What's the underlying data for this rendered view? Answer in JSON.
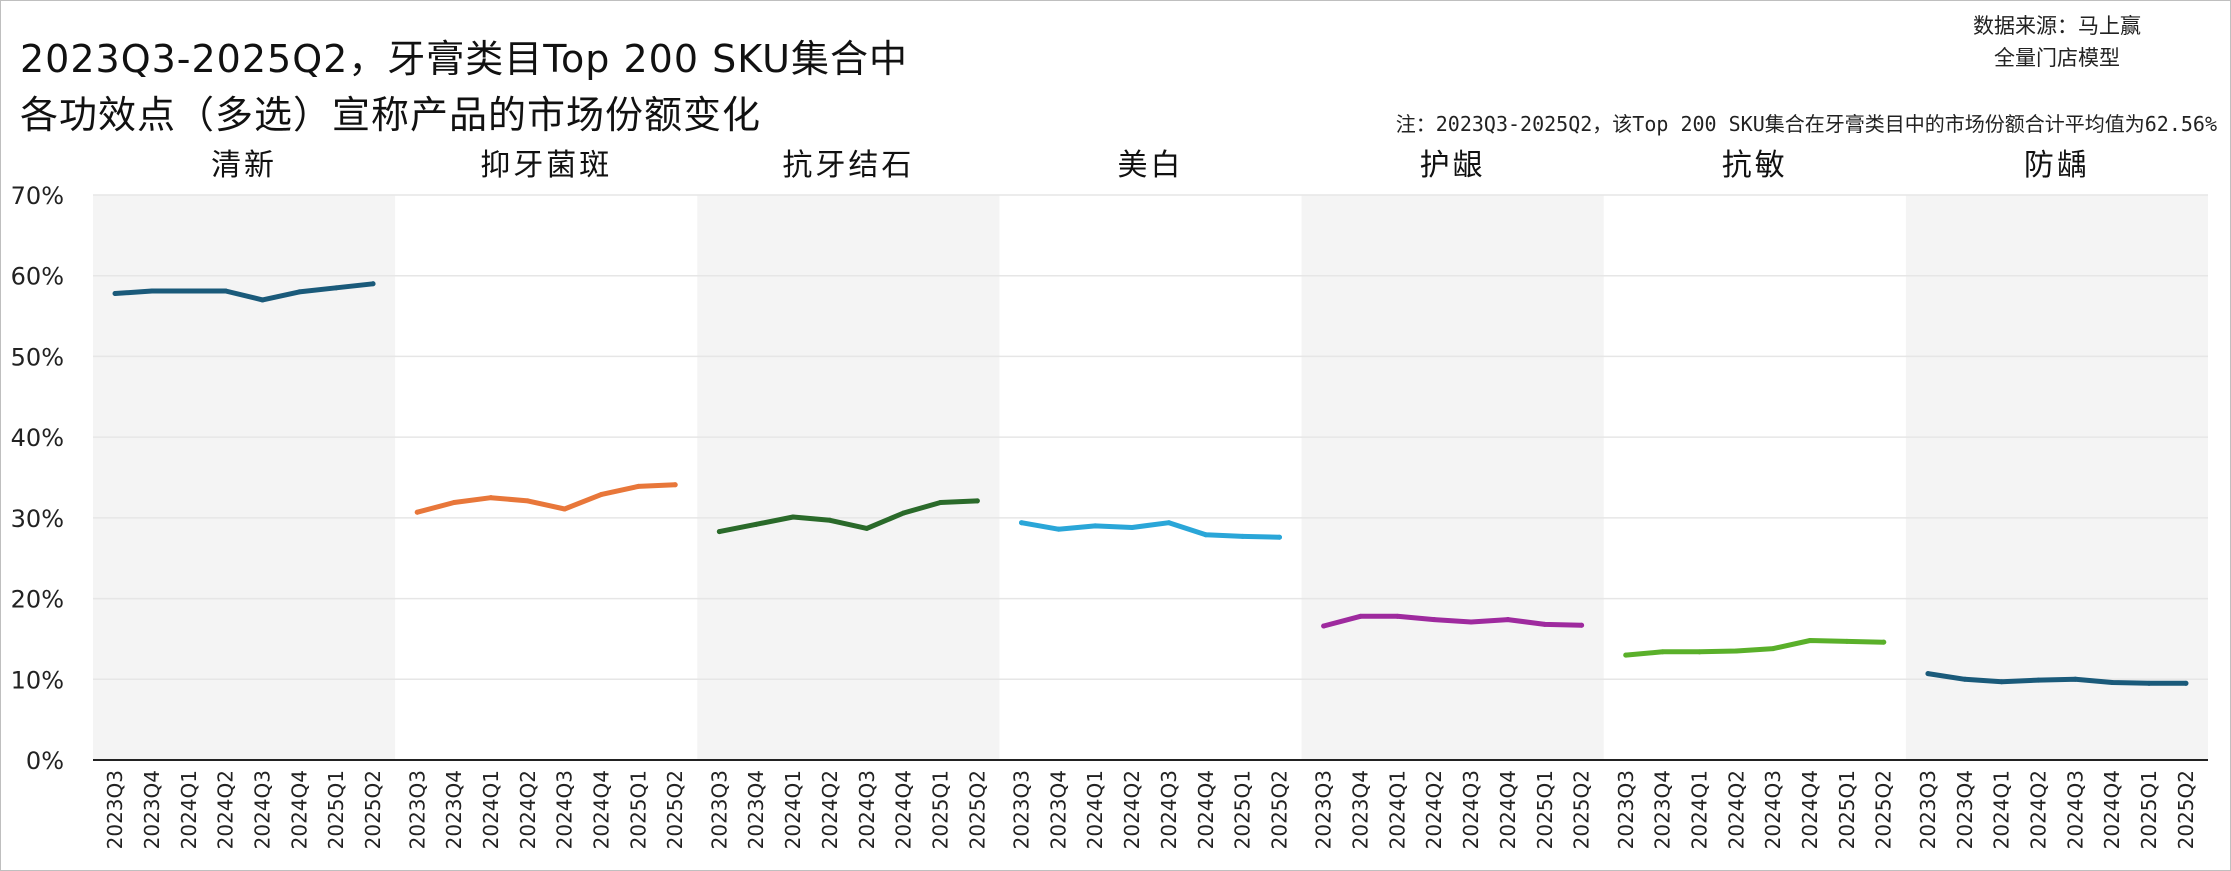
{
  "title": {
    "line1": "2023Q3-2025Q2，牙膏类目Top 200 SKU集合中",
    "line2": "各功效点（多选）宣称产品的市场份额变化"
  },
  "source": {
    "line1": "数据来源：马上赢",
    "line2": "全量门店模型"
  },
  "note": "注：2023Q3-2025Q2，该Top 200 SKU集合在牙膏类目中的市场份额合计平均值为62.56%",
  "chart_data": {
    "type": "line",
    "layout": "small-multiples",
    "y_ticks": [
      "0%",
      "10%",
      "20%",
      "30%",
      "40%",
      "50%",
      "60%",
      "70%"
    ],
    "ylim": [
      0,
      70
    ],
    "y_unit": "%",
    "grid": true,
    "categories": [
      "2023Q3",
      "2023Q4",
      "2024Q1",
      "2024Q2",
      "2024Q3",
      "2024Q4",
      "2025Q1",
      "2025Q2"
    ],
    "panels": [
      {
        "name": "清新",
        "color": "#1a5a7a",
        "shaded": true,
        "values": [
          57.8,
          58.1,
          58.1,
          58.1,
          57.0,
          58.0,
          58.5,
          59.0
        ]
      },
      {
        "name": "抑牙菌斑",
        "color": "#e8773a",
        "shaded": false,
        "values": [
          30.7,
          31.9,
          32.5,
          32.1,
          31.1,
          32.9,
          33.9,
          34.1
        ]
      },
      {
        "name": "抗牙结石",
        "color": "#2a6a2a",
        "shaded": true,
        "values": [
          28.3,
          29.2,
          30.1,
          29.7,
          28.7,
          30.6,
          31.9,
          32.1
        ]
      },
      {
        "name": "美白",
        "color": "#2aa6d8",
        "shaded": false,
        "values": [
          29.4,
          28.6,
          29.0,
          28.8,
          29.4,
          27.9,
          27.7,
          27.6
        ]
      },
      {
        "name": "护龈",
        "color": "#9e2a9e",
        "shaded": true,
        "values": [
          16.6,
          17.8,
          17.8,
          17.4,
          17.1,
          17.4,
          16.8,
          16.7
        ]
      },
      {
        "name": "抗敏",
        "color": "#5ab02a",
        "shaded": false,
        "values": [
          13.0,
          13.4,
          13.4,
          13.5,
          13.8,
          14.8,
          14.7,
          14.6
        ]
      },
      {
        "name": "防龋",
        "color": "#1a5a7a",
        "shaded": true,
        "values": [
          10.7,
          10.0,
          9.7,
          9.9,
          10.0,
          9.6,
          9.5,
          9.5
        ]
      }
    ]
  }
}
